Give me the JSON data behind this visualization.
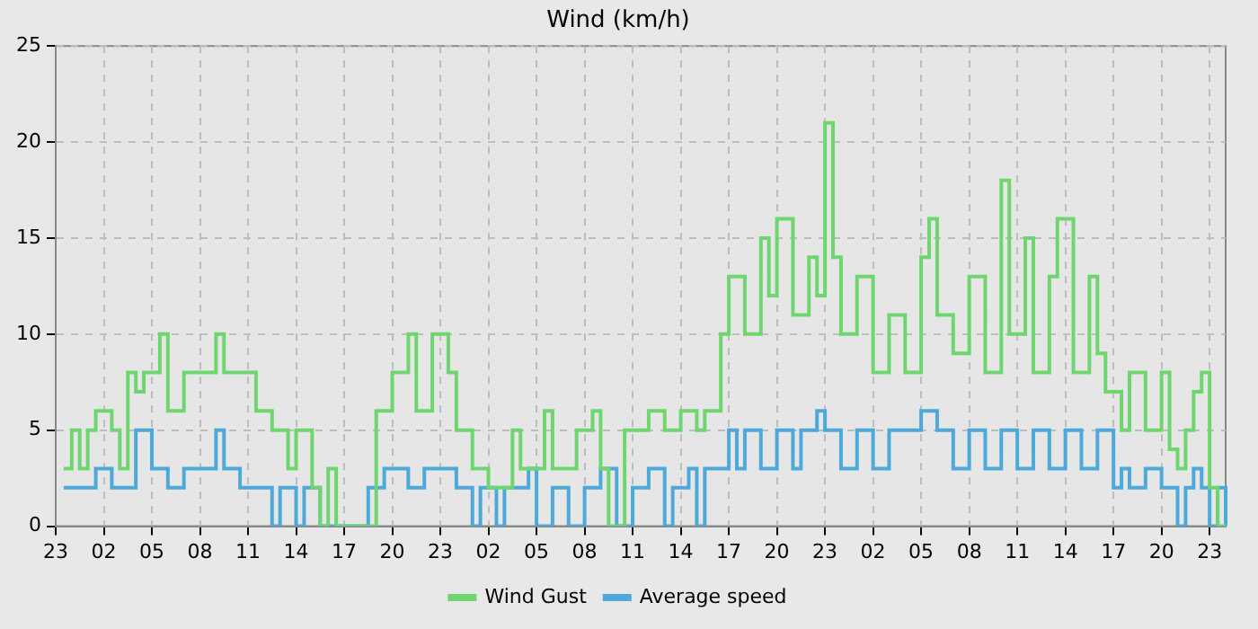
{
  "chart_data": {
    "type": "step",
    "title": "Wind (km/h)",
    "legend": "bottom",
    "grid": true,
    "line_style": "solid",
    "marker": "none",
    "categories": [
      "23",
      null,
      null,
      null,
      null,
      null,
      "02",
      null,
      null,
      null,
      null,
      null,
      "05",
      null,
      null,
      null,
      null,
      null,
      "08",
      null,
      null,
      null,
      null,
      null,
      "11",
      null,
      null,
      null,
      null,
      null,
      "14",
      null,
      null,
      null,
      null,
      null,
      "17",
      null,
      null,
      null,
      null,
      null,
      "20",
      null,
      null,
      null,
      null,
      null,
      "23",
      null,
      null,
      null,
      null,
      null,
      "02",
      null,
      null,
      null,
      null,
      null,
      "05",
      null,
      null,
      null,
      null,
      null,
      "08",
      null,
      null,
      null,
      null,
      null,
      "11",
      null,
      null,
      null,
      null,
      null,
      "14",
      null,
      null,
      null,
      null,
      null,
      "17",
      null,
      null,
      null,
      null,
      null,
      "20",
      null,
      null,
      null,
      null,
      null,
      "23",
      null,
      null,
      null,
      null,
      null,
      "02",
      null,
      null,
      null,
      null,
      null,
      "05",
      null,
      null,
      null,
      null,
      null,
      "08",
      null,
      null,
      null,
      null,
      null,
      "11",
      null,
      null,
      null,
      null,
      null,
      "14",
      null,
      null,
      null,
      null,
      null,
      "17",
      null,
      null,
      null,
      null,
      null,
      "20",
      null,
      null,
      null,
      null,
      null,
      "23",
      null,
      null
    ],
    "ylim": [
      0,
      25
    ],
    "yticks": [
      0,
      5,
      10,
      15,
      20,
      25
    ],
    "series": [
      {
        "name": "Wind Gust",
        "color": "#6fd66f",
        "values": [
          null,
          3,
          5,
          3,
          5,
          6,
          6,
          5,
          3,
          8,
          7,
          8,
          8,
          10,
          6,
          6,
          8,
          8,
          8,
          8,
          10,
          8,
          8,
          8,
          8,
          6,
          6,
          5,
          5,
          3,
          5,
          5,
          2,
          0,
          3,
          0,
          0,
          0,
          0,
          0,
          6,
          6,
          8,
          8,
          10,
          6,
          6,
          10,
          10,
          8,
          5,
          5,
          3,
          3,
          2,
          2,
          2,
          5,
          3,
          3,
          3,
          6,
          3,
          3,
          3,
          5,
          5,
          6,
          3,
          0,
          0,
          5,
          5,
          5,
          6,
          6,
          5,
          5,
          6,
          6,
          5,
          6,
          6,
          10,
          13,
          13,
          10,
          10,
          15,
          12,
          16,
          16,
          11,
          11,
          14,
          12,
          21,
          14,
          10,
          10,
          13,
          13,
          8,
          8,
          11,
          11,
          8,
          8,
          14,
          16,
          11,
          11,
          9,
          9,
          13,
          13,
          8,
          8,
          18,
          10,
          10,
          15,
          8,
          8,
          13,
          16,
          16,
          8,
          8,
          13,
          9,
          7,
          7,
          5,
          8,
          8,
          5,
          5,
          8,
          4,
          3,
          5,
          7,
          8,
          2,
          0,
          0
        ]
      },
      {
        "name": "Average speed",
        "color": "#4da9d9",
        "values": [
          null,
          2,
          2,
          2,
          2,
          3,
          3,
          2,
          2,
          2,
          5,
          5,
          3,
          3,
          2,
          2,
          3,
          3,
          3,
          3,
          5,
          3,
          3,
          2,
          2,
          2,
          2,
          0,
          2,
          2,
          0,
          2,
          2,
          0,
          0,
          0,
          0,
          0,
          0,
          2,
          2,
          3,
          3,
          3,
          2,
          2,
          3,
          3,
          3,
          3,
          2,
          2,
          0,
          2,
          2,
          0,
          2,
          2,
          2,
          3,
          0,
          0,
          2,
          2,
          0,
          0,
          2,
          2,
          3,
          3,
          0,
          0,
          2,
          2,
          3,
          3,
          0,
          2,
          2,
          3,
          0,
          3,
          3,
          3,
          5,
          3,
          5,
          5,
          3,
          3,
          5,
          5,
          3,
          5,
          5,
          6,
          5,
          5,
          3,
          3,
          5,
          5,
          3,
          3,
          5,
          5,
          5,
          5,
          6,
          6,
          5,
          5,
          3,
          3,
          5,
          5,
          3,
          3,
          5,
          5,
          3,
          3,
          5,
          5,
          3,
          3,
          5,
          5,
          3,
          3,
          5,
          5,
          2,
          3,
          2,
          2,
          3,
          3,
          2,
          2,
          0,
          2,
          3,
          2,
          0,
          2,
          0
        ]
      }
    ]
  }
}
